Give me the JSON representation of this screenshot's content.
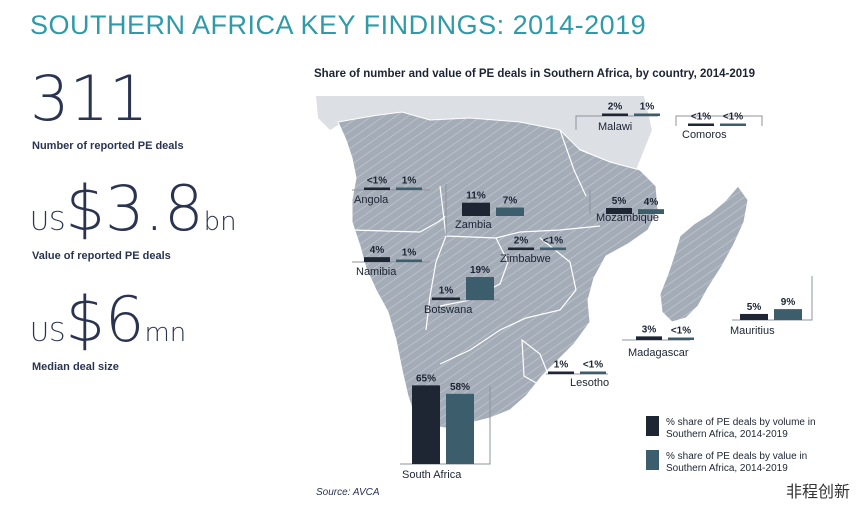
{
  "header": {
    "title": "SOUTHERN AFRICA KEY FINDINGS: 2014-2019"
  },
  "stats": [
    {
      "prefix": "",
      "value": "311",
      "suffix": "",
      "label": "Number of reported PE deals"
    },
    {
      "prefix": "US",
      "value": "$3.8",
      "suffix": "bn",
      "label": "Value of reported PE deals"
    },
    {
      "prefix": "US",
      "value": "$6",
      "suffix": "mn",
      "label": "Median deal size"
    }
  ],
  "colors": {
    "volume": "#1e2533",
    "value": "#3c5d6c",
    "accent": "#2f9aa8"
  },
  "source": "Source: AVCA",
  "watermark": "非程创新",
  "chart_data": {
    "type": "bar",
    "title": "Share of number and value of PE deals in Southern Africa, by country, 2014-2019",
    "unit": "%",
    "series": [
      {
        "name": "% share of PE deals by volume in Southern Africa, 2014-2019"
      },
      {
        "name": "% share of PE deals by value in Southern Africa, 2014-2019"
      }
    ],
    "countries": [
      {
        "name": "Malawi",
        "volume": 2,
        "value": 1,
        "volume_label": "2%",
        "value_label": "1%"
      },
      {
        "name": "Comoros",
        "volume": 0.5,
        "value": 0.5,
        "volume_label": "<1%",
        "value_label": "<1%"
      },
      {
        "name": "Angola",
        "volume": 0.5,
        "value": 1,
        "volume_label": "<1%",
        "value_label": "1%"
      },
      {
        "name": "Zambia",
        "volume": 11,
        "value": 7,
        "volume_label": "11%",
        "value_label": "7%"
      },
      {
        "name": "Mozambique",
        "volume": 5,
        "value": 4,
        "volume_label": "5%",
        "value_label": "4%"
      },
      {
        "name": "Namibia",
        "volume": 4,
        "value": 1,
        "volume_label": "4%",
        "value_label": "1%"
      },
      {
        "name": "Zimbabwe",
        "volume": 2,
        "value": 0.5,
        "volume_label": "2%",
        "value_label": "<1%"
      },
      {
        "name": "Botswana",
        "volume": 1,
        "value": 19,
        "volume_label": "1%",
        "value_label": "19%"
      },
      {
        "name": "Mauritius",
        "volume": 5,
        "value": 9,
        "volume_label": "5%",
        "value_label": "9%"
      },
      {
        "name": "Madagascar",
        "volume": 3,
        "value": 0.5,
        "volume_label": "3%",
        "value_label": "<1%"
      },
      {
        "name": "Lesotho",
        "volume": 1,
        "value": 0.5,
        "volume_label": "1%",
        "value_label": "<1%"
      },
      {
        "name": "South Africa",
        "volume": 65,
        "value": 58,
        "volume_label": "65%",
        "value_label": "58%"
      }
    ]
  }
}
